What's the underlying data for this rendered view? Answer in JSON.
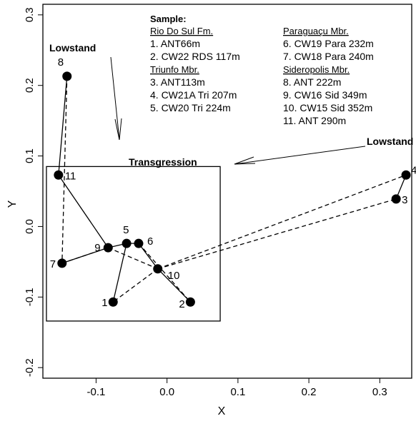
{
  "chart_data": {
    "type": "scatter",
    "xlabel": "X",
    "ylabel": "Y",
    "xlim": [
      -0.175,
      0.345
    ],
    "ylim": [
      -0.215,
      0.315
    ],
    "x_ticks": [
      "-0.1",
      "0.0",
      "0.1",
      "0.2",
      "0.3"
    ],
    "x_tick_values": [
      -0.1,
      0.0,
      0.1,
      0.2,
      0.3
    ],
    "y_ticks": [
      "-0.2",
      "-0.1",
      "0.0",
      "0.1",
      "0.2",
      "0.3"
    ],
    "y_tick_values": [
      -0.2,
      -0.1,
      0.0,
      0.1,
      0.2,
      0.3
    ],
    "grid": false,
    "points": [
      {
        "label": "1",
        "x": -0.076,
        "y": -0.107
      },
      {
        "label": "2",
        "x": 0.033,
        "y": -0.107
      },
      {
        "label": "3",
        "x": 0.323,
        "y": 0.039
      },
      {
        "label": "4",
        "x": 0.337,
        "y": 0.073
      },
      {
        "label": "5",
        "x": -0.057,
        "y": -0.024
      },
      {
        "label": "6",
        "x": -0.04,
        "y": -0.024
      },
      {
        "label": "7",
        "x": -0.148,
        "y": -0.052
      },
      {
        "label": "8",
        "x": -0.141,
        "y": 0.213
      },
      {
        "label": "9",
        "x": -0.083,
        "y": -0.03
      },
      {
        "label": "10",
        "x": -0.013,
        "y": -0.06
      },
      {
        "label": "11",
        "x": -0.153,
        "y": 0.073
      }
    ],
    "solid_path": [
      "8",
      "11",
      "9",
      "5",
      "6",
      "10",
      "2"
    ],
    "solid_segments": [
      [
        "1",
        "5"
      ],
      [
        "3",
        "4"
      ],
      [
        "7",
        "9"
      ]
    ],
    "dashed_path": [
      "8",
      "7",
      "9",
      "10",
      "1"
    ],
    "dashed_segments": [
      [
        "5",
        "6"
      ],
      [
        "6",
        "2"
      ],
      [
        "10",
        "4"
      ],
      [
        "10",
        "3"
      ]
    ],
    "box": {
      "x": [
        -0.17,
        0.075
      ],
      "y": [
        -0.134,
        0.085
      ]
    },
    "annotations": {
      "lowstand_left": "Lowstand",
      "lowstand_right": "Lowstand",
      "transgression": "Transgression"
    },
    "legend": {
      "heading": "Sample:",
      "groups": [
        {
          "name": "Rio Do Sul Fm.",
          "items": [
            "1. ANT66m",
            "2. CW22 RDS 117m"
          ]
        },
        {
          "name": "Triunfo Mbr.",
          "items": [
            "3. ANT113m",
            "4. CW21A Tri 207m",
            "5. CW20 Tri 224m"
          ]
        },
        {
          "name": "Paraguaçu Mbr.",
          "items": [
            "6. CW19 Para 232m",
            "7. CW18 Para 240m"
          ]
        },
        {
          "name": "Sideropolis Mbr.",
          "items": [
            "8. ANT 222m",
            "9. CW16 Sid 349m",
            "10. CW15 Sid 352m",
            "11. ANT 290m"
          ]
        }
      ]
    }
  }
}
